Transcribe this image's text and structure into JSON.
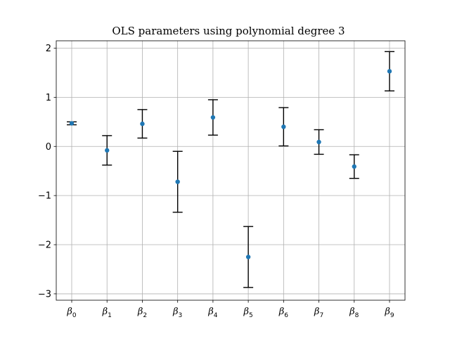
{
  "chart_data": {
    "type": "scatter",
    "title": "OLS parameters using polynomial degree 3",
    "xlabel": "",
    "ylabel": "",
    "categories": [
      {
        "symbol": "β",
        "sub": "0"
      },
      {
        "symbol": "β",
        "sub": "1"
      },
      {
        "symbol": "β",
        "sub": "2"
      },
      {
        "symbol": "β",
        "sub": "3"
      },
      {
        "symbol": "β",
        "sub": "4"
      },
      {
        "symbol": "β",
        "sub": "5"
      },
      {
        "symbol": "β",
        "sub": "6"
      },
      {
        "symbol": "β",
        "sub": "7"
      },
      {
        "symbol": "β",
        "sub": "8"
      },
      {
        "symbol": "β",
        "sub": "9"
      }
    ],
    "values": [
      0.47,
      -0.08,
      0.46,
      -0.72,
      0.59,
      -2.25,
      0.4,
      0.09,
      -0.41,
      1.53
    ],
    "errors": [
      0.03,
      0.3,
      0.29,
      0.62,
      0.36,
      0.62,
      0.39,
      0.25,
      0.24,
      0.4
    ],
    "ylim": [
      -3.13,
      2.15
    ],
    "yticks": [
      2,
      1,
      0,
      -1,
      -2,
      -3
    ],
    "ytick_labels": [
      "2",
      "1",
      "0",
      "−1",
      "−2",
      "−3"
    ],
    "grid": true,
    "marker_color": "#1f77b4",
    "errorbar_color": "#000000"
  }
}
